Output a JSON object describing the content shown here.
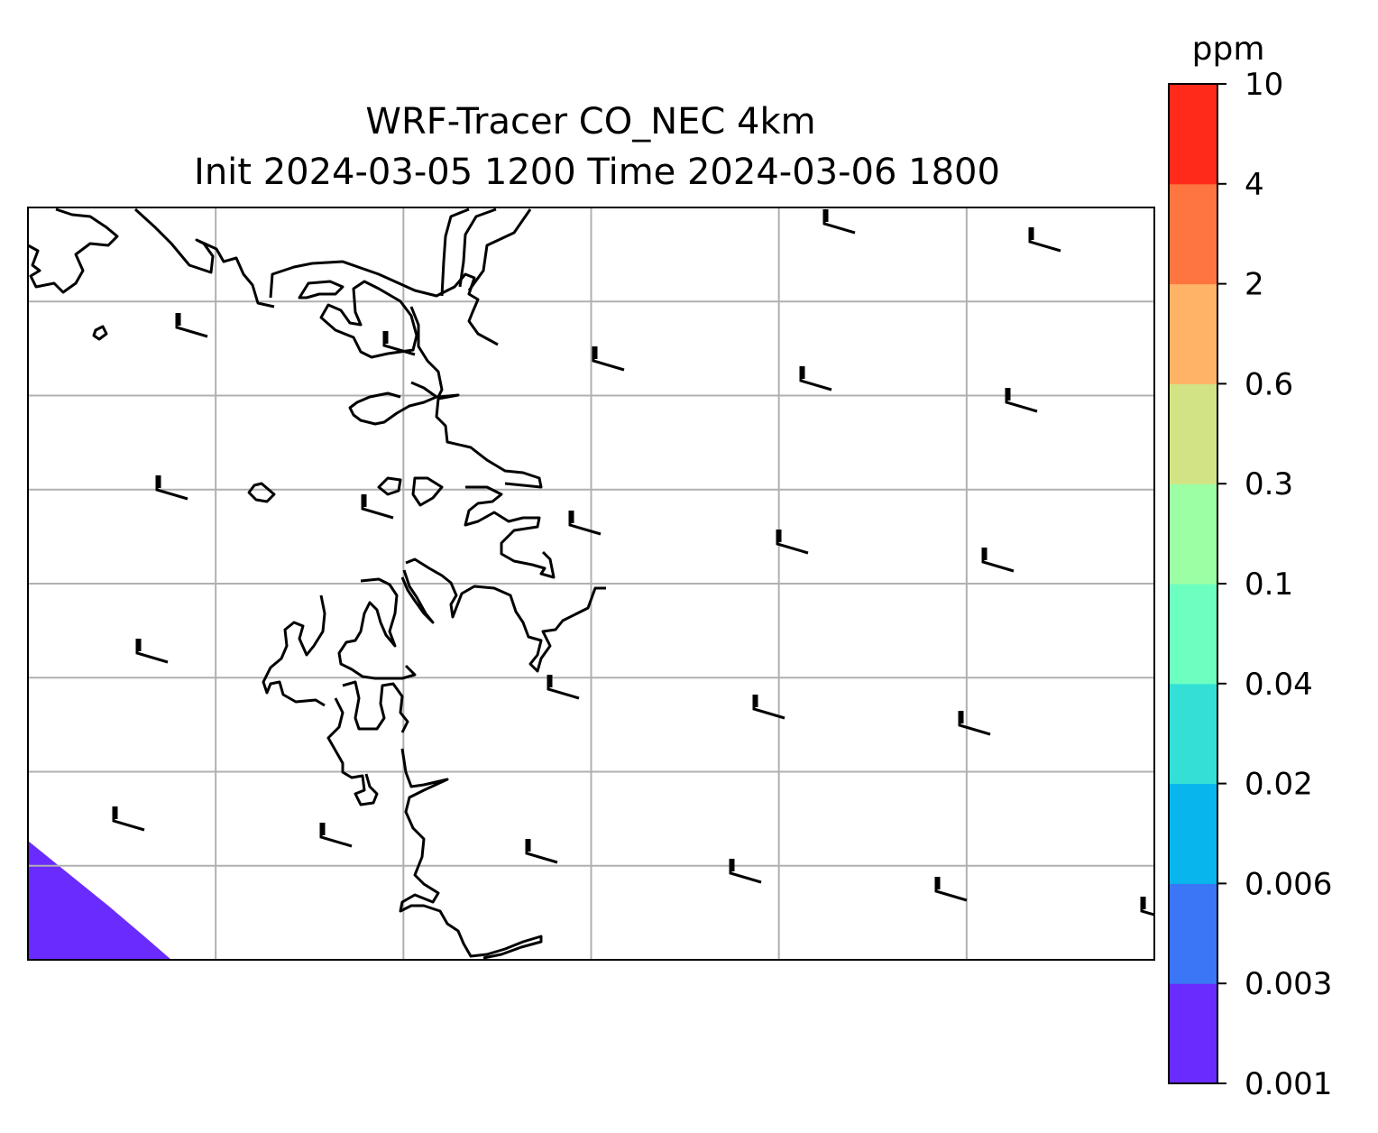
{
  "title": {
    "line1": "WRF-Tracer CO_NEC 4km",
    "line2": "Init 2024-03-05 1200 Time 2024-03-06 1800"
  },
  "colorbar": {
    "unit": "ppm",
    "levels": [
      "0.001",
      "0.003",
      "0.006",
      "0.02",
      "0.04",
      "0.1",
      "0.3",
      "0.6",
      "2",
      "4",
      "10"
    ],
    "colors": [
      "#6a2bff",
      "#3a76f5",
      "#08b5ec",
      "#34e0d6",
      "#6cffc0",
      "#9dffa4",
      "#d2e385",
      "#ffb366",
      "#ff7540",
      "#ff2a1a"
    ]
  },
  "map": {
    "field_color": "#6a2bff",
    "coastline_color": "#000000",
    "grid_color": "#b0b0b0",
    "grid_columns": 6,
    "grid_rows": 8
  }
}
